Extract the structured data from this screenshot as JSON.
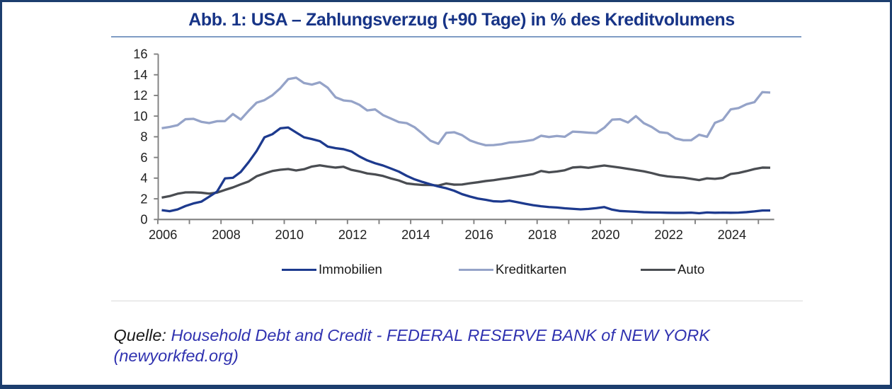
{
  "title": "Abb. 1: USA – Zahlungsverzug (+90 Tage) in % des Kreditvolumens",
  "source": {
    "prefix": "Quelle:",
    "link_line1": "Household Debt and Credit - FEDERAL RESERVE BANK of NEW YORK",
    "link_line2": "(newyorkfed.org)"
  },
  "colors": {
    "frame_border": "#1c3e6e",
    "title_text": "#173487",
    "title_rule": "#7f9cc4",
    "axis": "#808080",
    "tick_label": "#1f1f1f",
    "legend_text": "#1a1a1a",
    "divider": "#d9d9d9",
    "source_text": "#1a1a1a",
    "source_link": "#3032b0",
    "series_immobilien": "#1d3a8e",
    "series_kreditkarten": "#95a3c8",
    "series_auto": "#4a4d52"
  },
  "chart_data": {
    "type": "line",
    "title": "Abb. 1: USA – Zahlungsverzug (+90 Tage) in % des Kreditvolumens",
    "xlabel": "",
    "ylabel": "",
    "ylim": [
      0,
      16
    ],
    "y_ticks": [
      0,
      2,
      4,
      6,
      8,
      10,
      12,
      14,
      16
    ],
    "x_tick_labels": [
      "2006",
      "2008",
      "2010",
      "2012",
      "2014",
      "2016",
      "2018",
      "2020",
      "2022",
      "2024"
    ],
    "x_frequency": "quarterly",
    "quarters": [
      "2006Q1",
      "2006Q2",
      "2006Q3",
      "2006Q4",
      "2007Q1",
      "2007Q2",
      "2007Q3",
      "2007Q4",
      "2008Q1",
      "2008Q2",
      "2008Q3",
      "2008Q4",
      "2009Q1",
      "2009Q2",
      "2009Q3",
      "2009Q4",
      "2010Q1",
      "2010Q2",
      "2010Q3",
      "2010Q4",
      "2011Q1",
      "2011Q2",
      "2011Q3",
      "2011Q4",
      "2012Q1",
      "2012Q2",
      "2012Q3",
      "2012Q4",
      "2013Q1",
      "2013Q2",
      "2013Q3",
      "2013Q4",
      "2014Q1",
      "2014Q2",
      "2014Q3",
      "2014Q4",
      "2015Q1",
      "2015Q2",
      "2015Q3",
      "2015Q4",
      "2016Q1",
      "2016Q2",
      "2016Q3",
      "2016Q4",
      "2017Q1",
      "2017Q2",
      "2017Q3",
      "2017Q4",
      "2018Q1",
      "2018Q2",
      "2018Q3",
      "2018Q4",
      "2019Q1",
      "2019Q2",
      "2019Q3",
      "2019Q4",
      "2020Q1",
      "2020Q2",
      "2020Q3",
      "2020Q4",
      "2021Q1",
      "2021Q2",
      "2021Q3",
      "2021Q4",
      "2022Q1",
      "2022Q2",
      "2022Q3",
      "2022Q4",
      "2023Q1",
      "2023Q2",
      "2023Q3",
      "2023Q4",
      "2024Q1",
      "2024Q2",
      "2024Q3",
      "2024Q4",
      "2025Q1",
      "2025Q2"
    ],
    "x_range": [
      "2006Q1",
      "2025Q2"
    ],
    "grid": false,
    "legend_position": "bottom",
    "series": [
      {
        "name": "Immobilien",
        "color": "#1d3a8e",
        "values": [
          0.9,
          0.8,
          0.97,
          1.3,
          1.55,
          1.72,
          2.2,
          2.7,
          3.97,
          4.03,
          4.6,
          5.55,
          6.62,
          7.95,
          8.25,
          8.82,
          8.9,
          8.42,
          7.95,
          7.78,
          7.58,
          7.05,
          6.9,
          6.8,
          6.58,
          6.1,
          5.72,
          5.44,
          5.22,
          4.93,
          4.63,
          4.22,
          3.88,
          3.63,
          3.4,
          3.19,
          3.02,
          2.78,
          2.45,
          2.22,
          2.02,
          1.9,
          1.76,
          1.73,
          1.82,
          1.67,
          1.52,
          1.38,
          1.28,
          1.2,
          1.16,
          1.08,
          1.03,
          0.98,
          1.02,
          1.1,
          1.2,
          0.95,
          0.82,
          0.78,
          0.75,
          0.7,
          0.68,
          0.67,
          0.65,
          0.64,
          0.64,
          0.66,
          0.6,
          0.68,
          0.65,
          0.66,
          0.65,
          0.66,
          0.71,
          0.78,
          0.87,
          0.87
        ]
      },
      {
        "name": "Kreditkarten",
        "color": "#95a3c8",
        "values": [
          8.83,
          8.95,
          9.12,
          9.7,
          9.74,
          9.45,
          9.33,
          9.51,
          9.52,
          10.2,
          9.67,
          10.52,
          11.3,
          11.55,
          12.02,
          12.7,
          13.58,
          13.72,
          13.2,
          13.05,
          13.27,
          12.75,
          11.82,
          11.52,
          11.44,
          11.1,
          10.55,
          10.65,
          10.1,
          9.76,
          9.42,
          9.32,
          8.92,
          8.3,
          7.62,
          7.32,
          8.38,
          8.44,
          8.16,
          7.65,
          7.38,
          7.18,
          7.2,
          7.28,
          7.45,
          7.5,
          7.58,
          7.7,
          8.1,
          7.98,
          8.08,
          8.0,
          8.5,
          8.46,
          8.4,
          8.36,
          8.88,
          9.66,
          9.7,
          9.38,
          10.0,
          9.32,
          8.95,
          8.45,
          8.36,
          7.85,
          7.67,
          7.67,
          8.2,
          8.0,
          9.35,
          9.65,
          10.65,
          10.78,
          11.15,
          11.35,
          12.32,
          12.28
        ]
      },
      {
        "name": "Auto",
        "color": "#4a4d52",
        "values": [
          2.12,
          2.26,
          2.49,
          2.62,
          2.63,
          2.59,
          2.5,
          2.6,
          2.86,
          3.1,
          3.4,
          3.68,
          4.18,
          4.45,
          4.69,
          4.81,
          4.88,
          4.74,
          4.86,
          5.12,
          5.24,
          5.12,
          5.02,
          5.1,
          4.8,
          4.65,
          4.45,
          4.36,
          4.21,
          3.97,
          3.77,
          3.49,
          3.4,
          3.34,
          3.33,
          3.28,
          3.48,
          3.37,
          3.38,
          3.5,
          3.6,
          3.72,
          3.8,
          3.92,
          4.02,
          4.14,
          4.26,
          4.39,
          4.69,
          4.56,
          4.64,
          4.76,
          5.03,
          5.08,
          5.0,
          5.12,
          5.22,
          5.12,
          5.02,
          4.9,
          4.78,
          4.66,
          4.49,
          4.29,
          4.17,
          4.1,
          4.05,
          3.93,
          3.81,
          3.98,
          3.93,
          4.02,
          4.4,
          4.5,
          4.68,
          4.88,
          5.02,
          5.01
        ]
      }
    ]
  },
  "legend": {
    "items": [
      {
        "label": "Immobilien"
      },
      {
        "label": "Kreditkarten"
      },
      {
        "label": "Auto"
      }
    ]
  }
}
